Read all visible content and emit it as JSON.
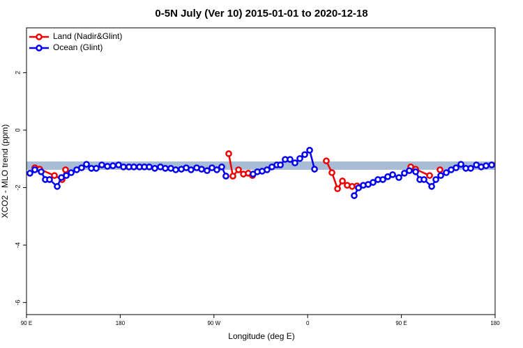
{
  "chart_data": {
    "type": "line",
    "title": "0-5N July (Ver 10)   2015-01-01 to 2020-12-18",
    "x_label": "Longitude (deg E)",
    "y_label": "XCO2 - MLO trend (ppm)",
    "xlim": [
      90,
      540
    ],
    "xticks": [
      {
        "value": 90,
        "label": "90 E"
      },
      180,
      {
        "value": 270,
        "label": "90 W"
      },
      {
        "value": 360,
        "label": "0"
      },
      {
        "value": 450,
        "label": "90 E"
      },
      {
        "value": 540,
        "label": "180"
      }
    ],
    "ylim": [
      -6.42,
      3.56
    ],
    "yticks": [
      -6,
      -4,
      -2,
      0,
      2
    ],
    "band": [
      -1.38,
      -1.09
    ],
    "band_color": "#a9bcd6",
    "legend": "top-left",
    "series": [
      {
        "name": "Land (Nadir&Glint)",
        "color": "#ee0000",
        "x": [
          98.0,
          102.7,
          116.8,
          124.2,
          127.5,
          null,
          284.2,
          288.2,
          293.6,
          298.3,
          303.0,
          307.0,
          null,
          377.9,
          383.3,
          388.7,
          393.4,
          398.0,
          402.7,
          407.4,
          null,
          459.0,
          463.7,
          477.1,
          null,
          487.1
        ],
        "values": [
          -1.31,
          -1.36,
          -1.58,
          -1.72,
          -1.38,
          null,
          -0.82,
          -1.6,
          -1.38,
          -1.53,
          -1.5,
          -1.58,
          null,
          -1.07,
          -1.48,
          -2.04,
          -1.77,
          -1.92,
          -1.96,
          -1.94,
          null,
          -1.28,
          -1.36,
          -1.58,
          null,
          -1.38
        ]
      },
      {
        "name": "Ocean (Glint)",
        "color": "#0000ee",
        "x": [
          93.3,
          98.0,
          104.1,
          108.1,
          112.1,
          119.5,
          123.5,
          128.2,
          132.9,
          138.2,
          142.9,
          147.6,
          152.3,
          157.0,
          162.3,
          167.7,
          173.0,
          178.4,
          183.1,
          188.4,
          193.1,
          198.5,
          203.2,
          207.9,
          213.2,
          218.6,
          223.3,
          228.6,
          233.3,
          238.7,
          243.4,
          248.0,
          253.4,
          258.1,
          263.4,
          268.1,
          272.8,
          277.5,
          281.5,
          null,
          307.6,
          311.7,
          316.3,
          321.0,
          325.7,
          330.4,
          333.8,
          338.4,
          343.1,
          347.8,
          352.5,
          357.2,
          361.9,
          366.6,
          null,
          404.7,
          408.8,
          413.4,
          418.1,
          422.8,
          427.5,
          432.2,
          436.9,
          441.6,
          447.6,
          452.9,
          457.6,
          463.7,
          467.7,
          471.7,
          479.1,
          483.1,
          487.8,
          493.1,
          497.8,
          502.5,
          507.2,
          511.9,
          516.6,
          522.0,
          526.6,
          531.3,
          536.7
        ],
        "values": [
          -1.5,
          -1.38,
          -1.45,
          -1.72,
          -1.72,
          -1.96,
          -1.65,
          -1.58,
          -1.48,
          -1.38,
          -1.31,
          -1.19,
          -1.33,
          -1.33,
          -1.21,
          -1.26,
          -1.24,
          -1.21,
          -1.28,
          -1.28,
          -1.28,
          -1.28,
          -1.28,
          -1.28,
          -1.33,
          -1.28,
          -1.33,
          -1.33,
          -1.38,
          -1.36,
          -1.31,
          -1.38,
          -1.31,
          -1.36,
          -1.41,
          -1.31,
          -1.38,
          -1.28,
          -1.6,
          null,
          -1.53,
          -1.45,
          -1.43,
          -1.38,
          -1.28,
          -1.21,
          -1.21,
          -1.02,
          -1.02,
          -1.14,
          -0.99,
          -0.85,
          -0.7,
          -1.36,
          null,
          -2.28,
          -2.01,
          -1.92,
          -1.89,
          -1.82,
          -1.72,
          -1.72,
          -1.62,
          -1.55,
          -1.65,
          -1.5,
          -1.41,
          -1.45,
          -1.72,
          -1.72,
          -1.96,
          -1.72,
          -1.58,
          -1.48,
          -1.38,
          -1.31,
          -1.19,
          -1.33,
          -1.33,
          -1.21,
          -1.28,
          -1.24,
          -1.21
        ]
      }
    ]
  }
}
